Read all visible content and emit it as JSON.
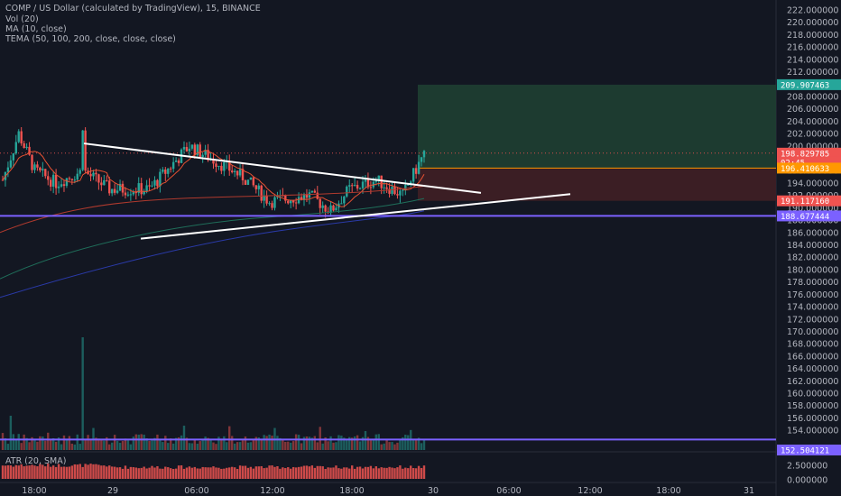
{
  "legend": {
    "symbol": "COMP / US Dollar (calculated by TradingView), 15, BINANCE",
    "volume": "Vol (20)",
    "ma": "MA (10, close)",
    "tema": "TEMA (50, 100, 200, close, close, close)",
    "atr": "ATR (20, SMA)"
  },
  "price_axis": {
    "ticks": [
      "222.000000",
      "220.000000",
      "218.000000",
      "216.000000",
      "214.000000",
      "212.000000",
      "210.000000",
      "208.000000",
      "206.000000",
      "204.000000",
      "202.000000",
      "200.000000",
      "198.000000",
      "196.000000",
      "194.000000",
      "192.000000",
      "190.000000",
      "188.000000",
      "186.000000",
      "184.000000",
      "182.000000",
      "180.000000",
      "178.000000",
      "176.000000",
      "174.000000",
      "172.000000",
      "170.000000",
      "168.000000",
      "166.000000",
      "164.000000",
      "162.000000",
      "160.000000",
      "158.000000",
      "156.000000",
      "154.000000"
    ],
    "tick_values": [
      222,
      220,
      218,
      216,
      214,
      212,
      210,
      208,
      206,
      204,
      202,
      200,
      198,
      196,
      194,
      192,
      190,
      188,
      186,
      184,
      182,
      180,
      178,
      176,
      174,
      172,
      170,
      168,
      166,
      164,
      162,
      160,
      158,
      156,
      154
    ],
    "atr_ticks": [
      "2.500000",
      "0.000000"
    ]
  },
  "time_axis": {
    "labels": [
      "18:00",
      "29",
      "06:00",
      "12:00",
      "18:00",
      "30",
      "06:00",
      "12:00",
      "18:00",
      "31"
    ]
  },
  "price_tags": [
    {
      "label": "209.907463",
      "value": 209.907463,
      "color": "#26a69a"
    },
    {
      "label": "198.829785",
      "value": 198.829785,
      "color": "#ef5350"
    },
    {
      "label": "02:45",
      "value": 197.6,
      "color": "#ef5350"
    },
    {
      "label": "196.410633",
      "value": 196.410633,
      "color": "#ff9800"
    },
    {
      "label": "191.117160",
      "value": 191.11716,
      "color": "#ef5350"
    },
    {
      "label": "188.677444",
      "value": 188.677444,
      "color": "#7b61ff"
    },
    {
      "label": "152.504121",
      "value": 152.504121,
      "color": "#7b61ff"
    }
  ],
  "horizontal_lines": [
    {
      "value": 188.677444,
      "color": "#7b61ff"
    },
    {
      "value": 152.504121,
      "color": "#7b61ff"
    }
  ],
  "position": {
    "target": 209.907463,
    "entry": 196.410633,
    "stop": 191.11716
  },
  "trendlines": {
    "upper": {
      "from": 200.4,
      "to": 192.4
    },
    "lower": {
      "from": 185.0,
      "to": 192.2
    }
  },
  "colors": {
    "background": "#131722",
    "up": "#26a69a",
    "down": "#ef5350",
    "level": "#7b61ff",
    "profit_zone": "#1e3d32",
    "loss_zone": "#3d1f25",
    "atr": "#ef5350"
  },
  "chart_data": {
    "type": "candlestick",
    "symbol": "COMP / US Dollar",
    "interval": "15",
    "exchange": "BINANCE",
    "ylim": [
      153,
      223
    ],
    "close_start": 194.5,
    "close_end": 198.829785,
    "notable_volume_spike": "29 ~01:00",
    "series": [
      {
        "name": "Vol (20)"
      },
      {
        "name": "MA (10, close)"
      },
      {
        "name": "TEMA (50, 100, 200, close, close, close)"
      },
      {
        "name": "ATR (20, SMA)"
      }
    ]
  }
}
